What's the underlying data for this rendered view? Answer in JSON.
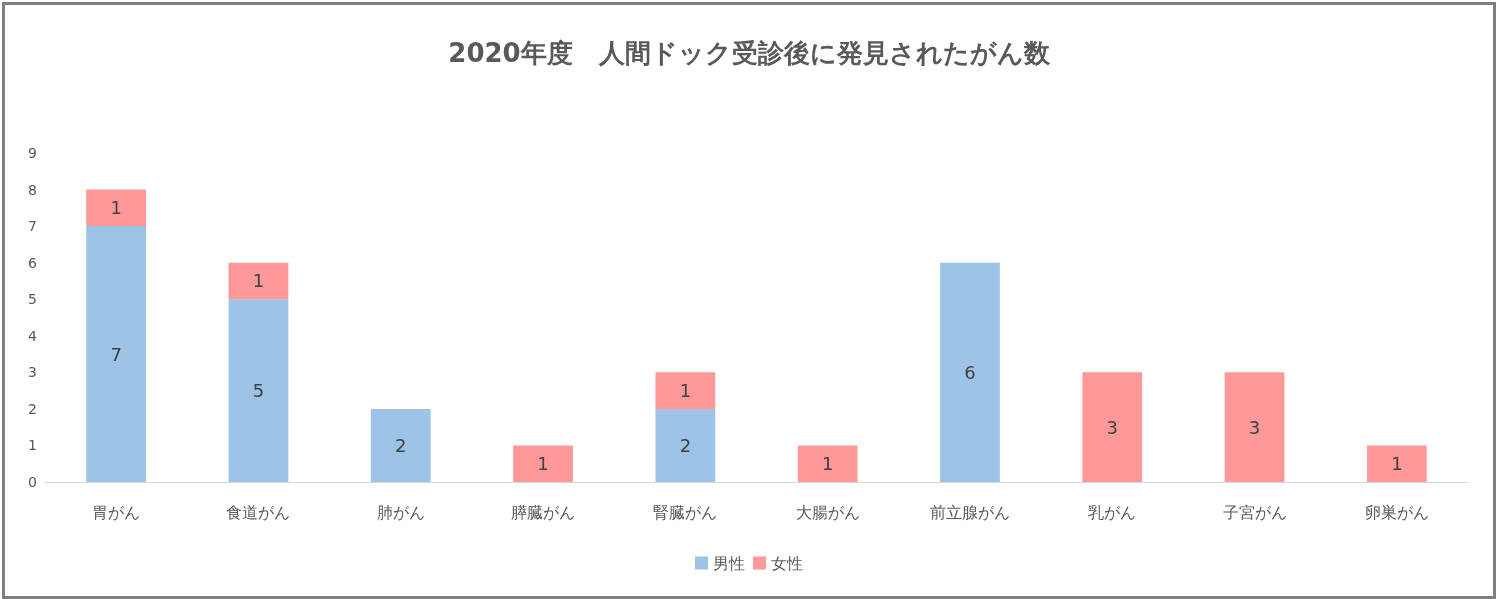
{
  "chart_data": {
    "type": "bar",
    "title": "2020年度　人間ドック受診後に発見されたがん数",
    "categories": [
      "胃がん",
      "食道がん",
      "肺がん",
      "膵臓がん",
      "腎臓がん",
      "大腸がん",
      "前立腺がん",
      "乳がん",
      "子宮がん",
      "卵巣がん"
    ],
    "series": [
      {
        "name": "男性",
        "color": "#9dc3e6",
        "values": [
          7,
          5,
          2,
          null,
          2,
          null,
          6,
          null,
          null,
          null
        ]
      },
      {
        "name": "女性",
        "color": "#ff9999",
        "values": [
          1,
          1,
          null,
          1,
          1,
          1,
          null,
          3,
          3,
          1
        ]
      }
    ],
    "stacked": true,
    "data_labels": true,
    "ylim": [
      0,
      9
    ],
    "yticks": [
      0,
      1,
      2,
      3,
      4,
      5,
      6,
      7,
      8,
      9
    ],
    "grid": false,
    "legend": "bottom"
  }
}
